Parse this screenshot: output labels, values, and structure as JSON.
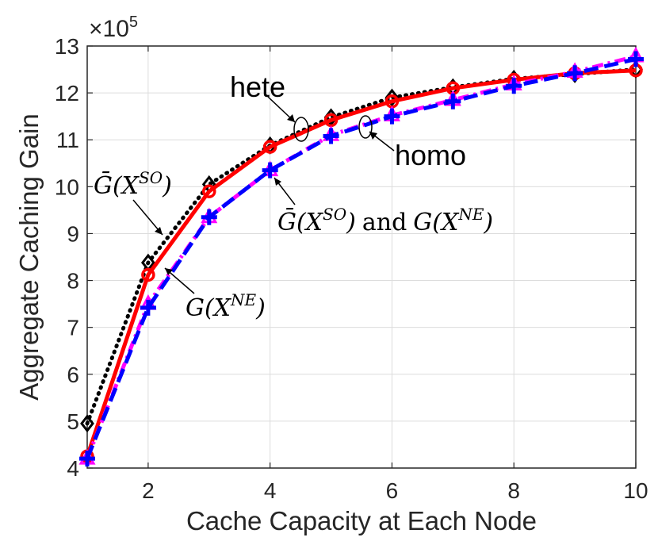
{
  "chart_data": {
    "type": "line",
    "xlabel": "Cache Capacity at Each Node",
    "ylabel": "Aggregate Caching Gain",
    "y_multiplier": "×10",
    "y_multiplier_exp": "5",
    "xlim": [
      1,
      10
    ],
    "ylim": [
      4,
      13
    ],
    "xticks": [
      2,
      4,
      6,
      8,
      10
    ],
    "yticks": [
      4,
      5,
      6,
      7,
      8,
      9,
      10,
      11,
      12,
      13
    ],
    "grid": true,
    "x": [
      1,
      2,
      3,
      4,
      5,
      6,
      7,
      8,
      9,
      10
    ],
    "series": [
      {
        "id": "hete_SO",
        "values": [
          4.95,
          8.38,
          10.05,
          10.88,
          11.48,
          11.9,
          12.12,
          12.3,
          12.4,
          12.5
        ],
        "color": "#000000",
        "style": "dotted",
        "marker": "diamond"
      },
      {
        "id": "hete_NE",
        "values": [
          4.25,
          8.12,
          9.9,
          10.85,
          11.42,
          11.82,
          12.1,
          12.28,
          12.42,
          12.48
        ],
        "color": "#ff0000",
        "style": "solid",
        "marker": "circle"
      },
      {
        "id": "homo_SO",
        "values": [
          4.2,
          7.5,
          9.35,
          10.35,
          11.1,
          11.52,
          11.85,
          12.18,
          12.45,
          12.78
        ],
        "color": "#ff00ff",
        "style": "dashdot",
        "marker": "triangle"
      },
      {
        "id": "homo_NE",
        "values": [
          4.2,
          7.42,
          9.35,
          10.35,
          11.08,
          11.5,
          11.82,
          12.15,
          12.42,
          12.72
        ],
        "color": "#0000ff",
        "style": "dashed",
        "marker": "plus"
      }
    ],
    "annotations": {
      "hete": "hete",
      "homo": "homo",
      "gso_label": {
        "base": "Ḡ(X",
        "sup": "SO",
        "close": ")"
      },
      "gne_label": {
        "base": "G(X",
        "sup": "NE",
        "close": ")"
      },
      "combined_label": {
        "base1": "Ḡ(X",
        "sup1": "SO",
        "close1": ")",
        "mid": "and",
        "base2": "G(X",
        "sup2": "NE",
        "close2": ")"
      }
    }
  }
}
